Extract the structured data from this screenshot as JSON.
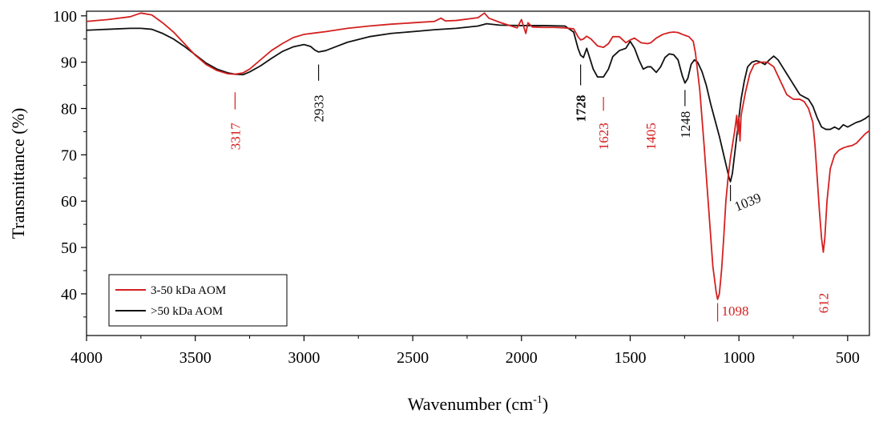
{
  "chart_data": {
    "type": "line",
    "title": "",
    "xlabel": "Wavenumber (cm",
    "xlabel_sup": "-1",
    "xlabel_suffix": ")",
    "ylabel": "Transmittance (%)",
    "xlim": [
      4000,
      400
    ],
    "ylim": [
      31,
      101
    ],
    "x_reversed": true,
    "grid": false,
    "legend_position": "bottom-left",
    "x_ticks": [
      4000,
      3500,
      3000,
      2500,
      2000,
      1500,
      1000,
      500
    ],
    "x_tick_labels": [
      "4000",
      "3500",
      "3000",
      "2500",
      "2000",
      "1500",
      "1000",
      "500"
    ],
    "y_ticks": [
      40,
      50,
      60,
      70,
      80,
      90,
      100
    ],
    "y_tick_labels": [
      "40",
      "50",
      "60",
      "70",
      "80",
      "90",
      "100"
    ],
    "series": [
      {
        "name": "3-50 kDa AOM",
        "color": "#d42020",
        "x": [
          4000,
          3900,
          3800,
          3750,
          3700,
          3650,
          3600,
          3550,
          3500,
          3450,
          3400,
          3350,
          3317,
          3280,
          3250,
          3200,
          3150,
          3100,
          3050,
          3000,
          2950,
          2900,
          2800,
          2700,
          2600,
          2500,
          2400,
          2370,
          2350,
          2300,
          2200,
          2170,
          2150,
          2100,
          2060,
          2020,
          2000,
          1980,
          1970,
          1950,
          1900,
          1850,
          1800,
          1760,
          1740,
          1728,
          1715,
          1700,
          1680,
          1650,
          1623,
          1600,
          1580,
          1550,
          1520,
          1500,
          1480,
          1450,
          1420,
          1405,
          1380,
          1350,
          1320,
          1300,
          1280,
          1260,
          1248,
          1230,
          1210,
          1200,
          1180,
          1160,
          1140,
          1120,
          1105,
          1098,
          1090,
          1080,
          1070,
          1060,
          1050,
          1040,
          1030,
          1020,
          1010,
          1005,
          1000,
          995,
          990,
          970,
          950,
          930,
          900,
          870,
          840,
          810,
          780,
          750,
          720,
          700,
          680,
          660,
          650,
          640,
          630,
          620,
          612,
          605,
          595,
          580,
          560,
          540,
          520,
          500,
          480,
          460,
          440,
          420,
          400
        ],
        "y": [
          98.8,
          99.2,
          99.8,
          100.6,
          100.2,
          98.5,
          96.5,
          94.0,
          91.5,
          89.5,
          88.2,
          87.5,
          87.4,
          87.7,
          88.5,
          90.5,
          92.5,
          94.0,
          95.3,
          96.0,
          96.3,
          96.6,
          97.3,
          97.8,
          98.2,
          98.5,
          98.8,
          99.5,
          98.9,
          99.0,
          99.6,
          100.6,
          99.5,
          98.6,
          98.0,
          97.4,
          99.2,
          96.2,
          98.5,
          97.6,
          97.5,
          97.5,
          97.4,
          97.2,
          95.5,
          94.8,
          95.0,
          95.6,
          95.0,
          93.5,
          93.2,
          94.0,
          95.5,
          95.5,
          94.2,
          94.8,
          95.2,
          94.2,
          94.0,
          94.2,
          95.2,
          96.0,
          96.4,
          96.5,
          96.4,
          96.0,
          95.8,
          95.5,
          94.5,
          92.0,
          84.0,
          72.0,
          59.0,
          46.0,
          40.5,
          38.8,
          40.0,
          45.0,
          52.0,
          60.0,
          65.0,
          69.0,
          72.0,
          75.0,
          78.5,
          74.5,
          78.0,
          73.0,
          78.5,
          83.5,
          87.5,
          89.5,
          90.0,
          90.0,
          89.0,
          86.0,
          83.0,
          82.0,
          82.0,
          81.5,
          80.0,
          77.0,
          72.0,
          65.0,
          58.0,
          52.0,
          49.0,
          52.0,
          60.0,
          67.0,
          70.0,
          71.0,
          71.5,
          71.8,
          72.0,
          72.5,
          73.5,
          74.5,
          75.2
        ]
      },
      {
        "name": ">50 kDa AOM",
        "color": "#111111",
        "x": [
          4000,
          3900,
          3800,
          3750,
          3700,
          3650,
          3600,
          3550,
          3500,
          3450,
          3400,
          3350,
          3317,
          3280,
          3250,
          3200,
          3150,
          3100,
          3050,
          3000,
          2970,
          2950,
          2933,
          2900,
          2850,
          2800,
          2700,
          2600,
          2500,
          2400,
          2300,
          2200,
          2160,
          2100,
          2000,
          1900,
          1800,
          1760,
          1740,
          1728,
          1715,
          1700,
          1690,
          1670,
          1650,
          1623,
          1600,
          1580,
          1550,
          1520,
          1500,
          1480,
          1460,
          1440,
          1420,
          1405,
          1380,
          1360,
          1340,
          1320,
          1300,
          1280,
          1260,
          1248,
          1235,
          1220,
          1205,
          1190,
          1170,
          1150,
          1130,
          1110,
          1090,
          1070,
          1055,
          1045,
          1039,
          1030,
          1020,
          1010,
          1000,
          990,
          975,
          960,
          940,
          920,
          900,
          880,
          860,
          840,
          820,
          800,
          780,
          760,
          740,
          720,
          700,
          680,
          660,
          640,
          620,
          600,
          580,
          560,
          540,
          520,
          500,
          480,
          460,
          440,
          420,
          400
        ],
        "y": [
          96.9,
          97.1,
          97.3,
          97.3,
          97.1,
          96.2,
          95.0,
          93.4,
          91.6,
          89.8,
          88.5,
          87.7,
          87.4,
          87.3,
          87.9,
          89.2,
          90.8,
          92.3,
          93.3,
          93.8,
          93.4,
          92.6,
          92.2,
          92.5,
          93.4,
          94.3,
          95.5,
          96.2,
          96.6,
          97.0,
          97.3,
          97.8,
          98.3,
          98.0,
          97.9,
          97.9,
          97.8,
          96.5,
          93.0,
          91.5,
          91.0,
          93.0,
          91.5,
          88.5,
          86.8,
          86.8,
          88.5,
          91.2,
          92.5,
          93.0,
          94.5,
          93.0,
          90.5,
          88.5,
          89.0,
          89.0,
          87.8,
          89.0,
          91.0,
          91.8,
          91.6,
          90.5,
          87.0,
          85.5,
          86.5,
          89.5,
          90.5,
          90.0,
          88.0,
          85.0,
          81.0,
          77.5,
          74.0,
          70.0,
          67.0,
          65.0,
          64.2,
          66.0,
          70.0,
          74.0,
          78.0,
          82.0,
          86.0,
          89.0,
          90.0,
          90.3,
          90.0,
          89.5,
          90.5,
          91.3,
          90.5,
          89.0,
          87.5,
          86.0,
          84.5,
          83.0,
          82.5,
          82.0,
          80.5,
          78.0,
          76.0,
          75.5,
          75.5,
          76.0,
          75.5,
          76.5,
          76.0,
          76.5,
          77.0,
          77.3,
          77.8,
          78.5
        ]
      }
    ],
    "annotations": [
      {
        "label": "3317",
        "x": 3317,
        "y_top": 83.5,
        "y_bot": 79.8,
        "text_y": 74.0,
        "color": "#d42020",
        "bold": false
      },
      {
        "label": "2933",
        "x": 2933,
        "y_top": 89.5,
        "y_bot": 86.0,
        "text_y": 80.0,
        "color": "#111111",
        "bold": false
      },
      {
        "label": "1728",
        "x": 1728,
        "y_top": 89.5,
        "y_bot": 85.0,
        "text_y": 80.0,
        "color": "#111111",
        "bold": true
      },
      {
        "label": "1623",
        "x": 1623,
        "y_top": 82.5,
        "y_bot": 79.5,
        "text_y": 74.0,
        "color": "#d42020",
        "bold": false
      },
      {
        "label": "1405",
        "x": 1405,
        "y_top": null,
        "y_bot": null,
        "text_y": 74.0,
        "color": "#d42020",
        "bold": false
      },
      {
        "label": "1248",
        "x": 1248,
        "y_top": 84.0,
        "y_bot": 80.5,
        "text_y": 76.5,
        "color": "#111111",
        "bold": false
      }
    ],
    "annotations_angled": [
      {
        "label": "1039",
        "x": 1039,
        "y_top": 63.5,
        "y_bot": 60.0,
        "text_x": 1010,
        "text_y": 57.8,
        "color": "#111111"
      }
    ],
    "annotations_horizontal": [
      {
        "label": "1098",
        "x": 1098,
        "y_top": 38.0,
        "y_bot": 34.0,
        "text_x": 1080,
        "text_y": 35.3,
        "color": "#d42020"
      }
    ],
    "annotations_vertical_red_612": {
      "label": "612",
      "x": 612,
      "text_y": 38.0,
      "color": "#d42020"
    }
  }
}
